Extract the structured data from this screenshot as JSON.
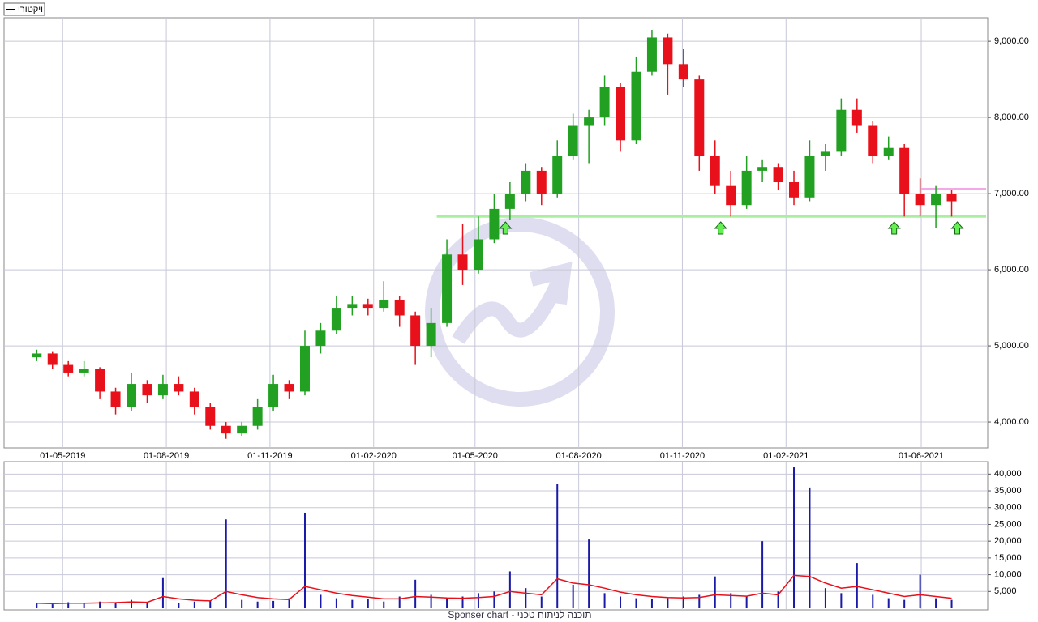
{
  "chart_data": [
    {
      "type": "candlestick",
      "legend": "ויקטורי",
      "x": [
        "2019-04-08",
        "2019-04-22",
        "2019-05-06",
        "2019-05-20",
        "2019-06-03",
        "2019-06-17",
        "2019-07-01",
        "2019-07-15",
        "2019-07-29",
        "2019-08-12",
        "2019-08-26",
        "2019-09-09",
        "2019-09-23",
        "2019-10-07",
        "2019-10-21",
        "2019-11-04",
        "2019-11-18",
        "2019-12-02",
        "2019-12-16",
        "2019-12-30",
        "2020-01-13",
        "2020-01-27",
        "2020-02-10",
        "2020-02-24",
        "2020-03-09",
        "2020-03-23",
        "2020-04-06",
        "2020-04-20",
        "2020-05-04",
        "2020-05-18",
        "2020-06-01",
        "2020-06-15",
        "2020-06-29",
        "2020-07-13",
        "2020-07-27",
        "2020-08-10",
        "2020-08-24",
        "2020-09-07",
        "2020-09-21",
        "2020-10-05",
        "2020-10-19",
        "2020-11-02",
        "2020-11-16",
        "2020-11-30",
        "2020-12-14",
        "2020-12-28",
        "2021-01-11",
        "2021-01-25",
        "2021-02-08",
        "2021-02-22",
        "2021-03-08",
        "2021-03-22",
        "2021-04-05",
        "2021-04-19",
        "2021-05-03",
        "2021-05-17",
        "2021-05-31",
        "2021-06-14",
        "2021-06-28"
      ],
      "open": [
        4850,
        4900,
        4750,
        4650,
        4700,
        4400,
        4200,
        4500,
        4350,
        4500,
        4400,
        4200,
        3950,
        3850,
        3950,
        4200,
        4500,
        4400,
        5000,
        5200,
        5500,
        5550,
        5500,
        5600,
        5400,
        5000,
        5300,
        6200,
        6000,
        6400,
        6800,
        7000,
        7300,
        7000,
        7500,
        7900,
        8000,
        8400,
        7700,
        8600,
        9050,
        8700,
        8500,
        7500,
        7100,
        6850,
        7300,
        7350,
        7150,
        6950,
        7500,
        7550,
        8100,
        7900,
        7500,
        7600,
        7000,
        6850,
        7000
      ],
      "high": [
        4950,
        4920,
        4800,
        4800,
        4720,
        4450,
        4650,
        4550,
        4620,
        4600,
        4450,
        4250,
        4000,
        4000,
        4300,
        4620,
        4550,
        5200,
        5300,
        5650,
        5650,
        5620,
        5850,
        5650,
        5450,
        5500,
        6400,
        6600,
        6700,
        7000,
        7150,
        7400,
        7350,
        7700,
        8050,
        8100,
        8550,
        8450,
        8800,
        9150,
        9100,
        8900,
        8550,
        7700,
        7300,
        7500,
        7450,
        7400,
        7300,
        7700,
        7650,
        8250,
        8250,
        7950,
        7750,
        7650,
        7200,
        7100,
        7050
      ],
      "low": [
        4800,
        4700,
        4600,
        4600,
        4300,
        4100,
        4150,
        4250,
        4300,
        4350,
        4100,
        3900,
        3780,
        3820,
        3900,
        4150,
        4300,
        4350,
        4900,
        5150,
        5400,
        5400,
        5450,
        5250,
        4750,
        4850,
        5250,
        5800,
        5950,
        6350,
        6650,
        6900,
        6850,
        6950,
        7450,
        7400,
        7900,
        7550,
        7650,
        8550,
        8300,
        8400,
        7300,
        7000,
        6700,
        6800,
        7150,
        7050,
        6850,
        6900,
        7300,
        7500,
        7800,
        7400,
        7450,
        6700,
        6700,
        6550,
        6700
      ],
      "close": [
        4900,
        4750,
        4650,
        4700,
        4400,
        4200,
        4500,
        4350,
        4500,
        4400,
        4200,
        3950,
        3850,
        3950,
        4200,
        4500,
        4400,
        5000,
        5200,
        5500,
        5550,
        5500,
        5600,
        5400,
        5000,
        5300,
        6200,
        6000,
        6400,
        6800,
        7000,
        7300,
        7000,
        7500,
        7900,
        8000,
        8400,
        7700,
        8600,
        9050,
        8700,
        8500,
        7500,
        7100,
        6850,
        7300,
        7350,
        7150,
        6950,
        7500,
        7550,
        8100,
        7900,
        7500,
        7600,
        7000,
        6850,
        7000,
        6900
      ],
      "up_color": "#22a022",
      "down_color": "#e8101a",
      "xlim": [
        "2019-03-10",
        "2021-07-30"
      ],
      "xticks": [
        {
          "value": "2019-05-01",
          "label": "01-05-2019"
        },
        {
          "value": "2019-08-01",
          "label": "01-08-2019"
        },
        {
          "value": "2019-11-01",
          "label": "01-11-2019"
        },
        {
          "value": "2020-02-01",
          "label": "01-02-2020"
        },
        {
          "value": "2020-05-01",
          "label": "01-05-2020"
        },
        {
          "value": "2020-08-01",
          "label": "01-08-2020"
        },
        {
          "value": "2020-11-01",
          "label": "01-11-2020"
        },
        {
          "value": "2021-02-01",
          "label": "01-02-2021"
        },
        {
          "value": "2021-06-01",
          "label": "01-06-2021"
        }
      ],
      "ylim": [
        3660,
        9310
      ],
      "yticks": [
        {
          "value": 4000,
          "label": "4,000.00"
        },
        {
          "value": 5000,
          "label": "5,000.00"
        },
        {
          "value": 6000,
          "label": "6,000.00"
        },
        {
          "value": 7000,
          "label": "7,000.00"
        },
        {
          "value": 8000,
          "label": "8,000.00"
        },
        {
          "value": 9000,
          "label": "9,000.00"
        }
      ],
      "grid": true,
      "levels": [
        {
          "value": 6700,
          "start": "2020-03-28",
          "color": "#a8f0a0"
        },
        {
          "value": 7060,
          "start": "2021-06-01",
          "color": "#f4a8e8"
        }
      ],
      "signals": [
        "2020-05-28",
        "2020-12-05",
        "2021-05-08",
        "2021-07-03"
      ]
    },
    {
      "type": "bar",
      "color": "#1a1aa8",
      "values": [
        1500,
        1200,
        1800,
        1600,
        2000,
        1800,
        2500,
        1500,
        9000,
        1600,
        2000,
        2200,
        26500,
        2500,
        2000,
        2200,
        3000,
        28500,
        4000,
        3000,
        2500,
        2800,
        2000,
        3500,
        8500,
        4000,
        3000,
        3500,
        4500,
        5000,
        11000,
        6000,
        3500,
        37000,
        7000,
        20500,
        4500,
        3500,
        3000,
        2800,
        3000,
        3500,
        4000,
        9500,
        4500,
        3500,
        20000,
        5000,
        42000,
        36000,
        6000,
        4500,
        13500,
        4000,
        3000,
        2500,
        10000,
        3000,
        2500
      ],
      "line_values": [
        1500,
        1400,
        1500,
        1500,
        1600,
        1700,
        1900,
        1800,
        3500,
        2800,
        2400,
        2200,
        5000,
        4000,
        3200,
        2800,
        2600,
        6500,
        5500,
        4500,
        3800,
        3300,
        2800,
        2800,
        3500,
        3300,
        3100,
        3000,
        3200,
        3500,
        5000,
        4500,
        4000,
        8800,
        7500,
        7000,
        6000,
        4800,
        4000,
        3500,
        3200,
        3100,
        3200,
        4000,
        3800,
        3600,
        4500,
        4000,
        9800,
        9500,
        7500,
        6000,
        6500,
        5500,
        4500,
        3500,
        4000,
        3500,
        3000
      ],
      "line_color": "#e8101a",
      "ylim": [
        -480,
        43700
      ],
      "yticks": [
        {
          "value": 5000,
          "label": "5,000"
        },
        {
          "value": 10000,
          "label": "10,000"
        },
        {
          "value": 15000,
          "label": "15,000"
        },
        {
          "value": 20000,
          "label": "20,000"
        },
        {
          "value": 25000,
          "label": "25,000"
        },
        {
          "value": 30000,
          "label": "30,000"
        },
        {
          "value": 35000,
          "label": "35,000"
        },
        {
          "value": 40000,
          "label": "40,000"
        }
      ],
      "grid": true,
      "footer": "Sponser chart - תוכנה לניתוח טכני"
    }
  ]
}
